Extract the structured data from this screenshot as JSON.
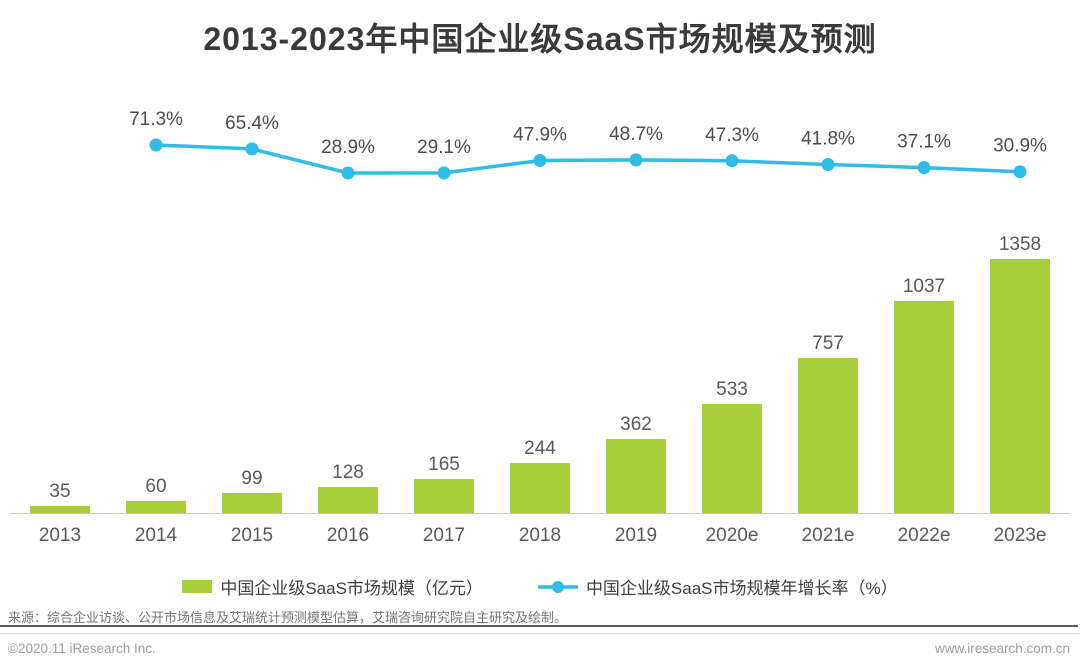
{
  "title": "2013-2023年中国企业级SaaS市场规模及预测",
  "chart_data": {
    "type": "bar",
    "title": "2013-2023年中国企业级SaaS市场规模及预测",
    "categories": [
      "2013",
      "2014",
      "2015",
      "2016",
      "2017",
      "2018",
      "2019",
      "2020e",
      "2021e",
      "2022e",
      "2023e"
    ],
    "series": [
      {
        "name": "中国企业级SaaS市场规模（亿元）",
        "type": "bar",
        "color": "#a6ce39",
        "values": [
          35,
          60,
          99,
          128,
          165,
          244,
          362,
          533,
          757,
          1037,
          1358
        ]
      },
      {
        "name": "中国企业级SaaS市场规模年增长率（%）",
        "type": "line",
        "color": "#2fbde8",
        "values": [
          null,
          71.3,
          65.4,
          28.9,
          29.1,
          47.9,
          48.7,
          47.3,
          41.8,
          37.1,
          30.9
        ],
        "labels": [
          "",
          "71.3%",
          "65.4%",
          "28.9%",
          "29.1%",
          "47.9%",
          "48.7%",
          "47.3%",
          "41.8%",
          "37.1%",
          "30.9%"
        ]
      }
    ],
    "ylim": [
      0,
      1358
    ],
    "grid": false,
    "value_axis_visible": false,
    "legend_position": "bottom",
    "data_labels": true
  },
  "legend": {
    "bar_label": "中国企业级SaaS市场规模（亿元）",
    "line_label": "中国企业级SaaS市场规模年增长率（%）"
  },
  "footer": {
    "source": "来源：综合企业访谈、公开市场信息及艾瑞统计预测模型估算，艾瑞咨询研究院自主研究及绘制。",
    "copyright": "©2020.11 iResearch Inc.",
    "website": "www.iresearch.com.cn"
  },
  "colors": {
    "bar": "#a6ce39",
    "line": "#2fbde8",
    "title_text": "#3a3a3a",
    "label_text": "#595959",
    "axis_line": "#c9c9c9"
  }
}
